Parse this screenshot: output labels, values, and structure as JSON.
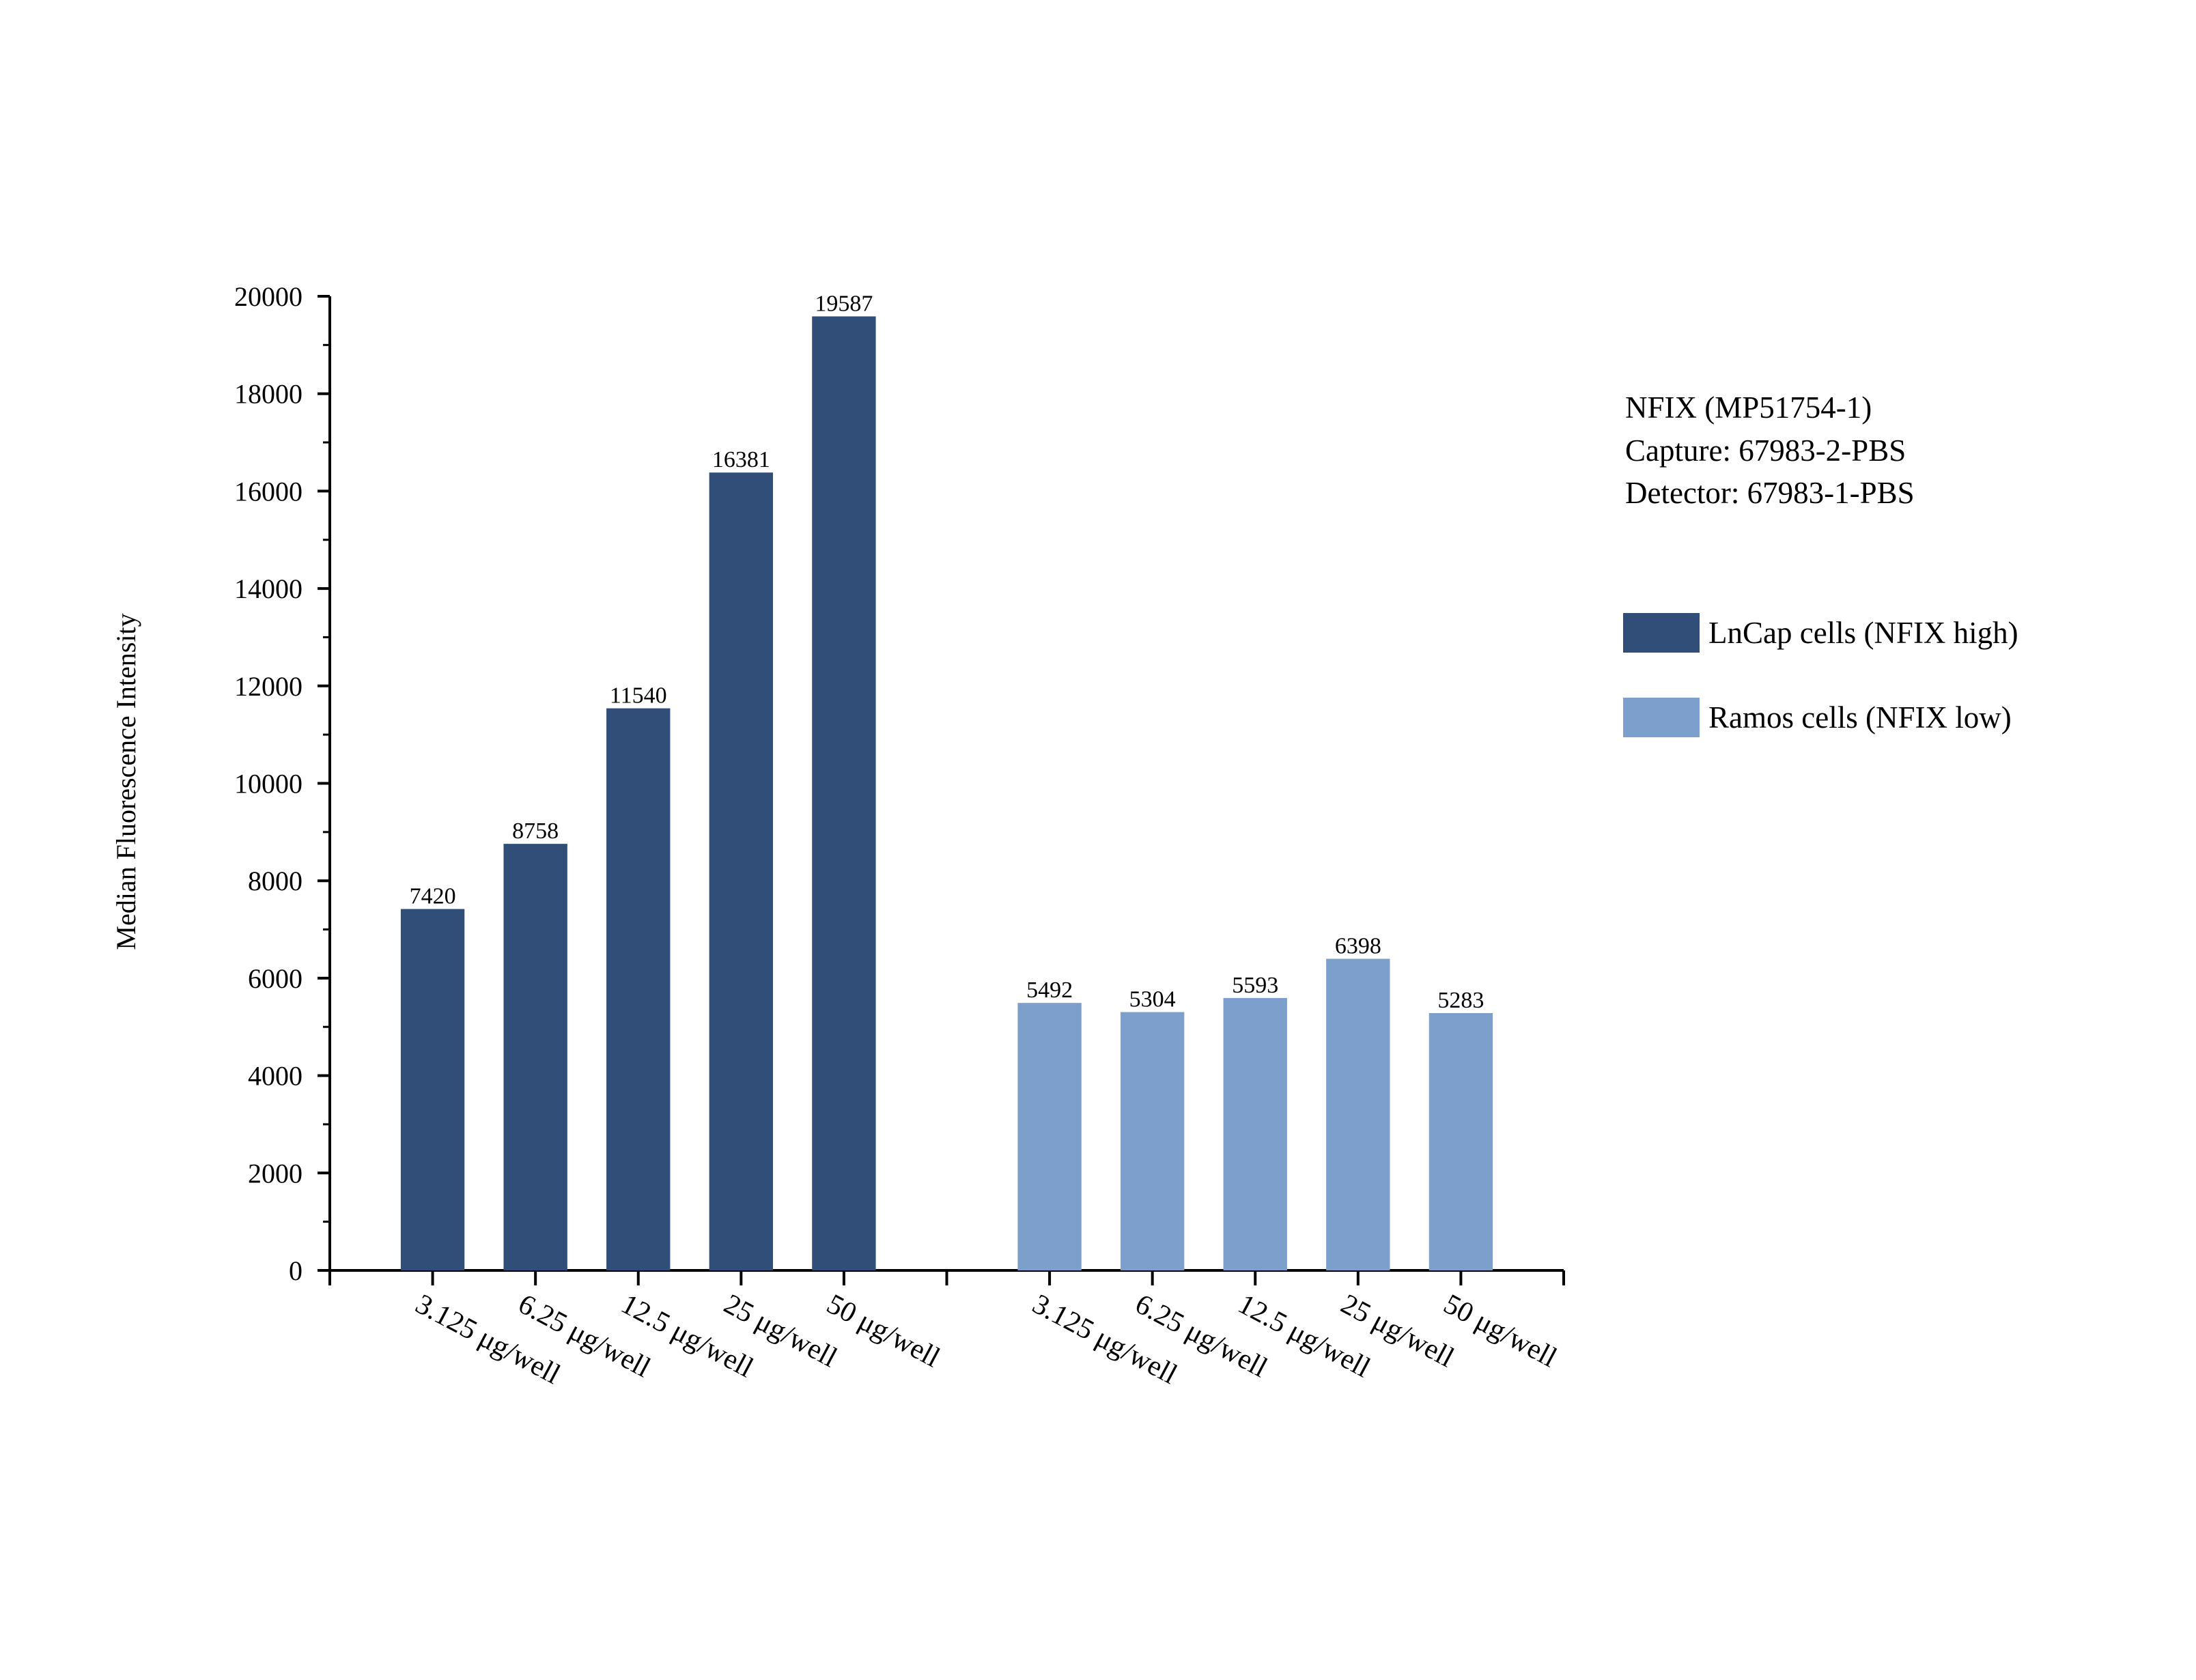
{
  "annotation": {
    "line1": "NFIX (MP51754-1)",
    "line2": "Capture: 67983-2-PBS",
    "line3": "Detector: 67983-1-PBS"
  },
  "chart_data": {
    "type": "bar",
    "title": "",
    "xlabel": "",
    "ylabel": "Median Fluorescence Intensity",
    "ylim": [
      0,
      20000
    ],
    "yticks": [
      0,
      2000,
      4000,
      6000,
      8000,
      10000,
      12000,
      14000,
      16000,
      18000,
      20000
    ],
    "grid": false,
    "legend_position": "right",
    "series": [
      {
        "name": "LnCap cells (NFIX high)",
        "color": "#304e78",
        "categories": [
          "3.125 μg/well",
          "6.25 μg/well",
          "12.5 μg/well",
          "25 μg/well",
          "50 μg/well"
        ],
        "values": [
          7420,
          8758,
          11540,
          16381,
          19587
        ]
      },
      {
        "name": "Ramos cells (NFIX low)",
        "color": "#7d9fcb",
        "categories": [
          "3.125 μg/well",
          "6.25 μg/well",
          "12.5 μg/well",
          "25 μg/well",
          "50 μg/well"
        ],
        "values": [
          5492,
          5304,
          5593,
          6398,
          5283
        ]
      }
    ]
  }
}
